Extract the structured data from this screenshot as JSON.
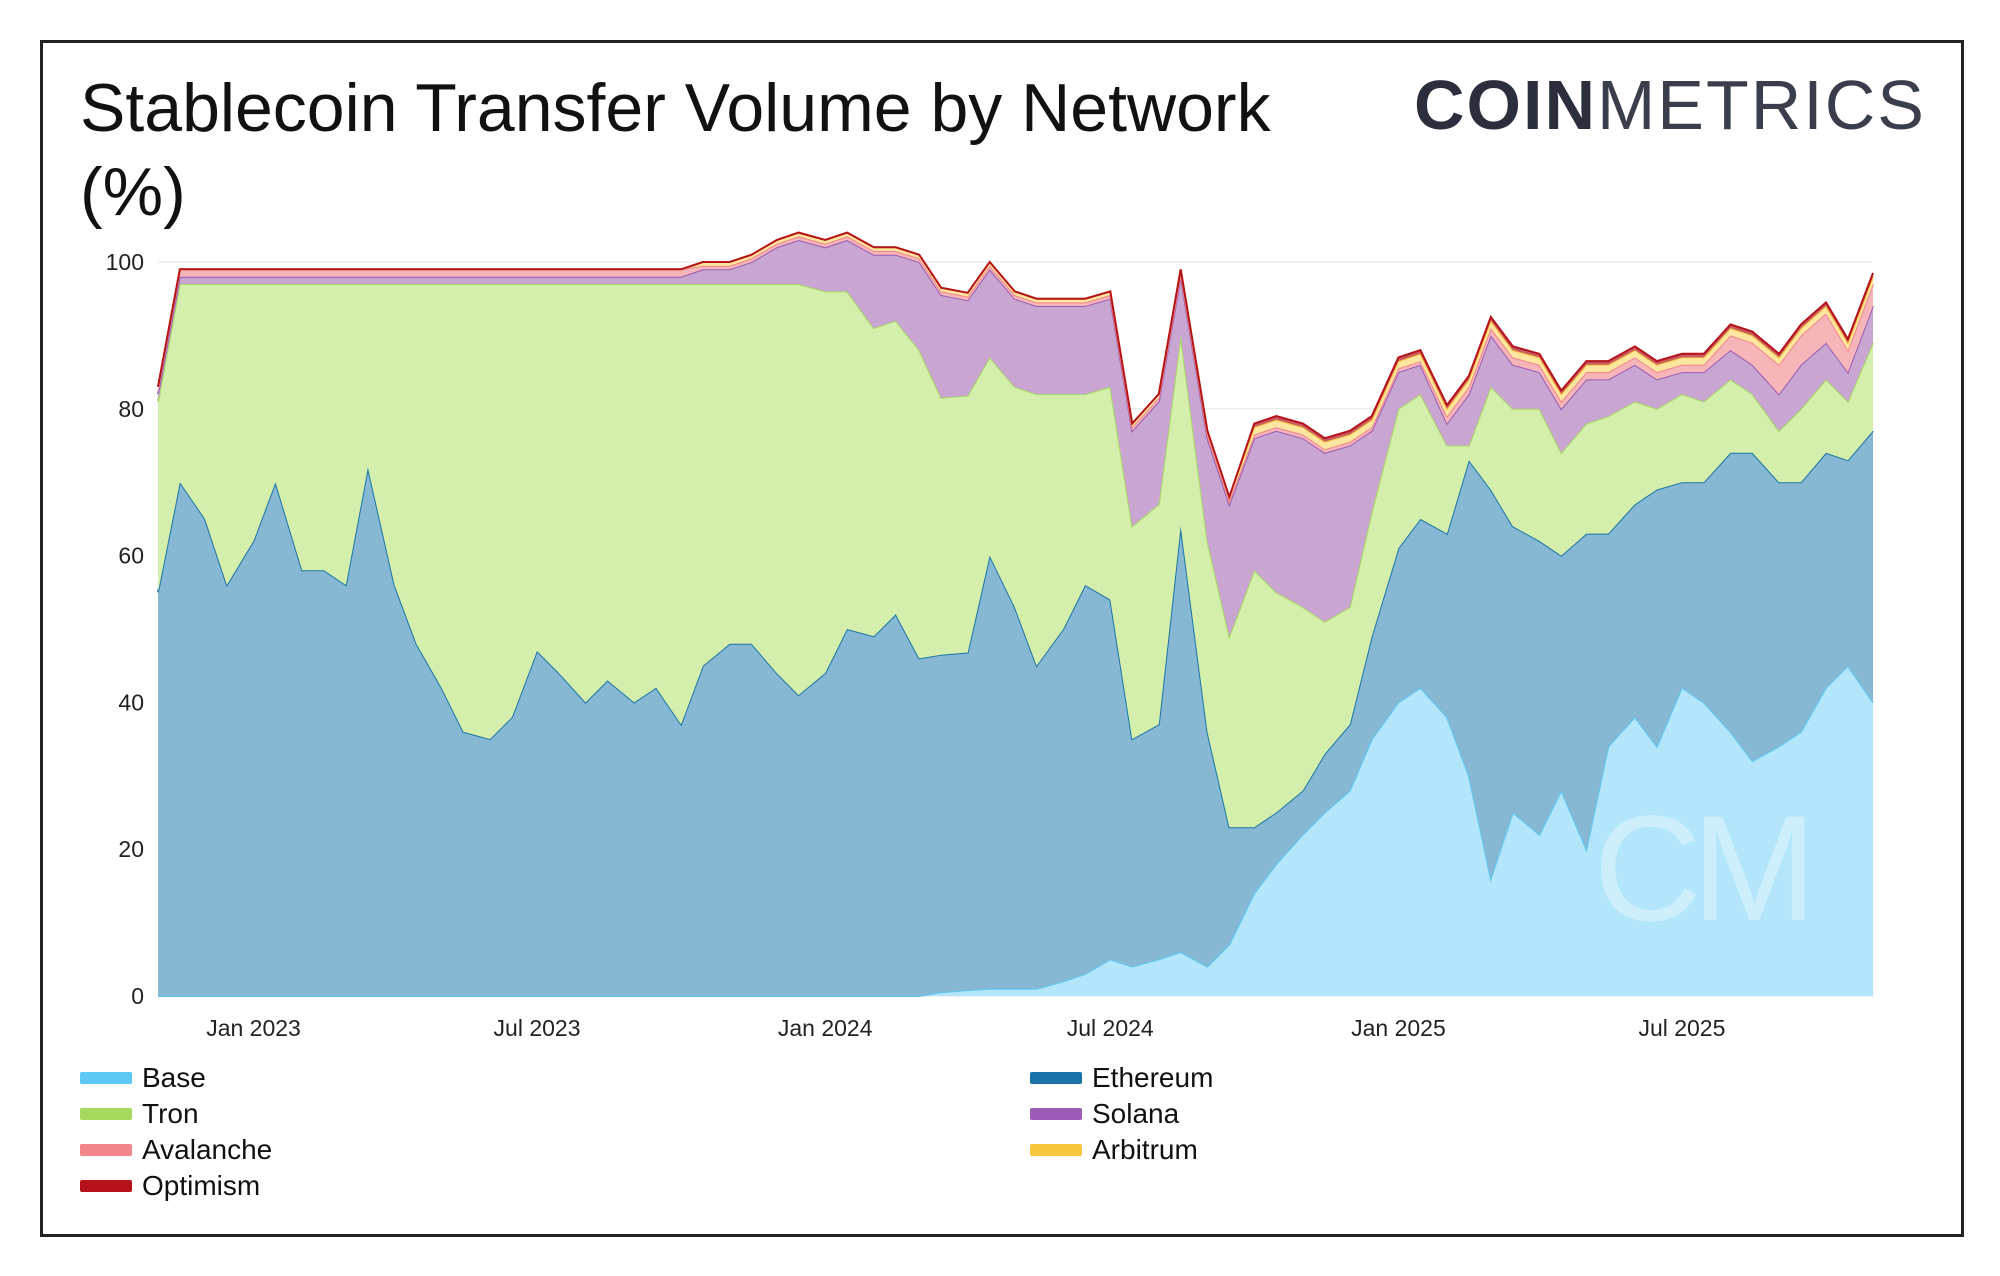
{
  "title": "Stablecoin Transfer Volume by Network (%)",
  "logo": {
    "strong": "COIN",
    "light": "METRICS"
  },
  "watermark": "CM",
  "chart_data": {
    "type": "area",
    "stacked": true,
    "title": "Stablecoin Transfer Volume by Network (%)",
    "xlabel": "",
    "ylabel": "",
    "ylim": [
      0,
      100
    ],
    "yticks": [
      0,
      20,
      40,
      60,
      80,
      100
    ],
    "xticks": [
      "Jan 2023",
      "Jul 2023",
      "Jan 2024",
      "Jul 2024",
      "Jan 2025",
      "Jul 2025"
    ],
    "x_range": [
      "2022-11-01",
      "2025-10-31"
    ],
    "grid": "horizontal",
    "legend_position": "bottom",
    "dates": [
      "2022-11-01",
      "2022-11-15",
      "2022-12-01",
      "2022-12-15",
      "2023-01-01",
      "2023-01-15",
      "2023-02-01",
      "2023-02-15",
      "2023-03-01",
      "2023-03-15",
      "2023-04-01",
      "2023-04-15",
      "2023-05-01",
      "2023-05-15",
      "2023-06-01",
      "2023-06-15",
      "2023-07-01",
      "2023-07-15",
      "2023-08-01",
      "2023-08-15",
      "2023-09-01",
      "2023-09-15",
      "2023-10-01",
      "2023-10-15",
      "2023-11-01",
      "2023-11-15",
      "2023-12-01",
      "2023-12-15",
      "2024-01-01",
      "2024-01-15",
      "2024-02-01",
      "2024-02-15",
      "2024-03-01",
      "2024-03-15",
      "2024-04-01",
      "2024-04-15",
      "2024-05-01",
      "2024-05-15",
      "2024-06-01",
      "2024-06-15",
      "2024-07-01",
      "2024-07-15",
      "2024-08-01",
      "2024-08-15",
      "2024-09-01",
      "2024-09-15",
      "2024-10-01",
      "2024-10-15",
      "2024-11-01",
      "2024-11-15",
      "2024-12-01",
      "2024-12-15",
      "2025-01-01",
      "2025-01-15",
      "2025-02-01",
      "2025-02-15",
      "2025-03-01",
      "2025-03-15",
      "2025-04-01",
      "2025-04-15",
      "2025-05-01",
      "2025-05-15",
      "2025-06-01",
      "2025-06-15",
      "2025-07-01",
      "2025-07-15",
      "2025-08-01",
      "2025-08-15",
      "2025-09-01",
      "2025-09-15",
      "2025-10-01",
      "2025-10-15",
      "2025-10-31"
    ],
    "series": [
      {
        "name": "Base",
        "color": "#5ec8f5",
        "values": [
          0,
          0,
          0,
          0,
          0,
          0,
          0,
          0,
          0,
          0,
          0,
          0,
          0,
          0,
          0,
          0,
          0,
          0,
          0,
          0,
          0,
          0,
          0,
          0,
          0,
          0,
          0,
          0,
          0,
          0,
          0,
          0,
          0,
          0.5,
          0.8,
          1,
          1,
          1,
          2,
          3,
          5,
          4,
          5,
          6,
          4,
          7,
          14,
          18,
          22,
          25,
          28,
          35,
          40,
          42,
          38,
          30,
          16,
          25,
          22,
          28,
          20,
          34,
          38,
          34,
          42,
          40,
          36,
          32,
          34,
          36,
          42,
          45,
          40
        ]
      },
      {
        "name": "Ethereum",
        "color": "#1b74a8",
        "values": [
          55,
          70,
          65,
          56,
          62,
          70,
          58,
          58,
          56,
          72,
          56,
          48,
          42,
          36,
          35,
          38,
          47,
          44,
          40,
          43,
          40,
          42,
          37,
          45,
          48,
          48,
          44,
          41,
          44,
          50,
          49,
          52,
          46,
          46,
          46,
          59,
          52,
          44,
          48,
          53,
          49,
          31,
          32,
          58,
          32,
          16,
          9,
          7,
          6,
          8,
          9,
          14,
          21,
          23,
          25,
          43,
          53,
          39,
          40,
          32,
          43,
          29,
          29,
          35,
          28,
          30,
          38,
          42,
          36,
          34,
          32,
          28,
          37
        ]
      },
      {
        "name": "Tron",
        "color": "#a8d95f",
        "values": [
          26,
          27,
          32,
          41,
          35,
          27,
          39,
          39,
          41,
          25,
          41,
          49,
          55,
          61,
          62,
          59,
          50,
          53,
          57,
          54,
          57,
          55,
          60,
          52,
          49,
          49,
          53,
          56,
          52,
          46,
          42,
          40,
          42,
          35,
          35,
          27,
          30,
          37,
          32,
          26,
          29,
          29,
          30,
          26,
          26,
          26,
          35,
          30,
          25,
          18,
          16,
          17,
          19,
          17,
          12,
          2,
          14,
          16,
          18,
          14,
          15,
          16,
          14,
          11,
          12,
          11,
          10,
          8,
          7,
          10,
          10,
          8,
          12
        ]
      },
      {
        "name": "Solana",
        "color": "#9b5ab5",
        "values": [
          1,
          1,
          1,
          1,
          1,
          1,
          1,
          1,
          1,
          1,
          1,
          1,
          1,
          1,
          1,
          1,
          1,
          1,
          1,
          1,
          1,
          1,
          1,
          2,
          2,
          3,
          5,
          6,
          6,
          7,
          10,
          9,
          12,
          14,
          13,
          12,
          12,
          12,
          12,
          12,
          12,
          13,
          14,
          8,
          14,
          18,
          18,
          22,
          23,
          23,
          22,
          11,
          5,
          4,
          3,
          7,
          7,
          6,
          5,
          6,
          6,
          5,
          5,
          4,
          3,
          4,
          4,
          4,
          5,
          6,
          5,
          4,
          5
        ]
      },
      {
        "name": "Avalanche",
        "color": "#f2858a",
        "values": [
          1,
          1,
          1,
          1,
          1,
          1,
          1,
          1,
          1,
          1,
          1,
          1,
          1,
          1,
          1,
          1,
          1,
          1,
          1,
          1,
          1,
          1,
          1,
          0.5,
          0.5,
          0.5,
          0.5,
          0.5,
          0.5,
          0.5,
          0.5,
          0.5,
          0.5,
          0.5,
          0.5,
          0.5,
          0.5,
          0.5,
          0.5,
          0.5,
          0.5,
          0.5,
          0.5,
          0.5,
          0.5,
          0.5,
          0.5,
          0.5,
          0.5,
          0.5,
          0.5,
          0.5,
          0.5,
          0.5,
          1,
          1,
          1,
          1,
          1,
          1,
          1,
          1,
          1,
          1,
          1,
          1,
          2,
          3,
          4,
          4,
          4,
          3,
          3
        ]
      },
      {
        "name": "Arbitrum",
        "color": "#f7c73d",
        "values": [
          0,
          0,
          0,
          0,
          0,
          0,
          0,
          0,
          0,
          0,
          0,
          0,
          0,
          0,
          0,
          0,
          0,
          0,
          0,
          0,
          0,
          0,
          0,
          0.5,
          0.5,
          0.5,
          0.5,
          0.5,
          0.5,
          0.5,
          0.5,
          0.5,
          0.5,
          0.5,
          0.5,
          0.5,
          0.5,
          0.5,
          0.5,
          0.5,
          0.5,
          0.5,
          0.5,
          0.5,
          0.5,
          0.5,
          1,
          1,
          1,
          1,
          1,
          1,
          1,
          1,
          1,
          1,
          1,
          1,
          1,
          1,
          1,
          1,
          1,
          1,
          1,
          1,
          1,
          1,
          1,
          1,
          1,
          1,
          1
        ]
      },
      {
        "name": "Optimism",
        "color": "#b5121b",
        "values": [
          0,
          0,
          0,
          0,
          0,
          0,
          0,
          0,
          0,
          0,
          0,
          0,
          0,
          0,
          0,
          0,
          0,
          0,
          0,
          0,
          0,
          0,
          0,
          0,
          0,
          0,
          0,
          0,
          0,
          0,
          0,
          0,
          0,
          0,
          0,
          0,
          0,
          0,
          0,
          0,
          0,
          0,
          0,
          0,
          0,
          0,
          0.5,
          0.5,
          0.5,
          0.5,
          0.5,
          0.5,
          0.5,
          0.5,
          0.5,
          0.5,
          0.5,
          0.5,
          0.5,
          0.5,
          0.5,
          0.5,
          0.5,
          0.5,
          0.5,
          0.5,
          0.5,
          0.5,
          0.5,
          0.5,
          0.5,
          0.5,
          0.5
        ]
      }
    ]
  },
  "legend": {
    "left": [
      {
        "name": "Base",
        "color": "#5ec8f5"
      },
      {
        "name": "Tron",
        "color": "#a8d95f"
      },
      {
        "name": "Avalanche",
        "color": "#f2858a"
      },
      {
        "name": "Optimism",
        "color": "#b5121b"
      }
    ],
    "right": [
      {
        "name": "Ethereum",
        "color": "#1b74a8"
      },
      {
        "name": "Solana",
        "color": "#9b5ab5"
      },
      {
        "name": "Arbitrum",
        "color": "#f7c73d"
      }
    ]
  }
}
